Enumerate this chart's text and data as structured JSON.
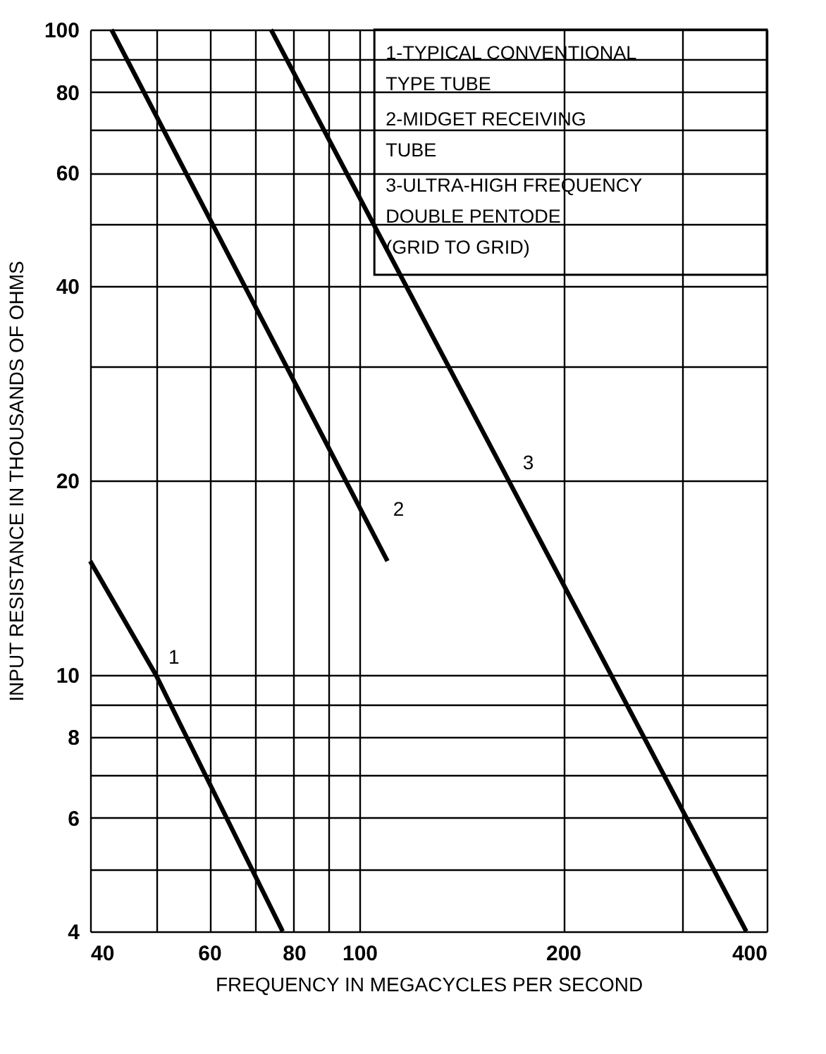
{
  "chart_data": {
    "type": "line",
    "xlabel": "FREQUENCY IN MEGACYCLES PER SECOND",
    "ylabel": "INPUT RESISTANCE IN THOUSANDS OF OHMS",
    "log": "xy",
    "xlim": [
      40,
      400
    ],
    "ylim": [
      4,
      100
    ],
    "xticks": [
      40,
      {
        "value": 50,
        "label": null
      },
      60,
      {
        "value": 70,
        "label": null
      },
      80,
      {
        "value": 90,
        "label": null
      },
      100,
      200,
      {
        "value": 300,
        "label": null
      },
      400
    ],
    "yticks": [
      4,
      {
        "value": 5,
        "label": null
      },
      6,
      {
        "value": 7,
        "label": null
      },
      8,
      {
        "value": 9,
        "label": null
      },
      10,
      20,
      {
        "value": 30,
        "label": null
      },
      40,
      {
        "value": 50,
        "label": null
      },
      60,
      {
        "value": 70,
        "label": null
      },
      80,
      {
        "value": 90,
        "label": null
      },
      100
    ],
    "grid": true,
    "line_style": "solid",
    "marker": "none",
    "series": [
      {
        "name": "1",
        "color": "#000000",
        "x": [
          40,
          50,
          77
        ],
        "values": [
          15,
          10,
          4
        ]
      },
      {
        "name": "2",
        "color": "#000000",
        "x": [
          43,
          110
        ],
        "values": [
          100,
          15
        ]
      },
      {
        "name": "3",
        "color": "#000000",
        "x": [
          74,
          373
        ],
        "values": [
          100,
          4
        ]
      }
    ],
    "annotations": [
      "1-TYPICAL CONVENTIONAL\n  TYPE TUBE",
      "2-MIDGET RECEIVING\n  TUBE",
      "3-ULTRA-HIGH FREQUENCY\n  DOUBLE PENTODE\n (GRID TO GRID)"
    ]
  }
}
